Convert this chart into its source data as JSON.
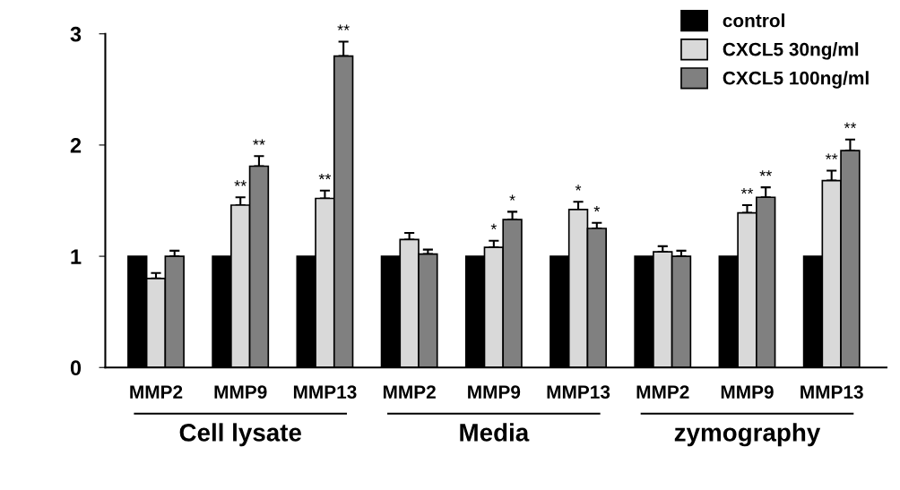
{
  "chart_data": {
    "type": "bar",
    "categories": [
      "MMP2",
      "MMP9",
      "MMP13",
      "MMP2",
      "MMP9",
      "MMP13",
      "MMP2",
      "MMP9",
      "MMP13"
    ],
    "series": [
      {
        "name": "control",
        "color": "#000000",
        "values": [
          1,
          1,
          1,
          1,
          1,
          1,
          1,
          1,
          1
        ]
      },
      {
        "name": "CXCL5 30ng/ml",
        "color": "#d9d9d9",
        "values": [
          0.8,
          1.46,
          1.52,
          1.15,
          1.08,
          1.42,
          1.04,
          1.39,
          1.68
        ],
        "errors": [
          0.05,
          0.07,
          0.07,
          0.06,
          0.06,
          0.07,
          0.05,
          0.07,
          0.09
        ],
        "value_labels": [
          null,
          "**",
          "**",
          null,
          "*",
          "*",
          null,
          "**",
          "**"
        ]
      },
      {
        "name": "CXCL5 100ng/ml",
        "color": "#808080",
        "values": [
          1.0,
          1.81,
          2.8,
          1.02,
          1.33,
          1.25,
          1.0,
          1.53,
          1.95
        ],
        "errors": [
          0.05,
          0.09,
          0.13,
          0.04,
          0.07,
          0.05,
          0.05,
          0.09,
          0.1
        ],
        "value_labels": [
          null,
          "**",
          "**",
          null,
          "*",
          "*",
          null,
          "**",
          "**"
        ]
      }
    ],
    "ylim": [
      0,
      3
    ],
    "yticks": [
      0,
      1,
      2,
      3
    ],
    "grid": false,
    "legend": "top right",
    "annotations": [
      "Cell lysate",
      "Media",
      "zymography"
    ]
  }
}
